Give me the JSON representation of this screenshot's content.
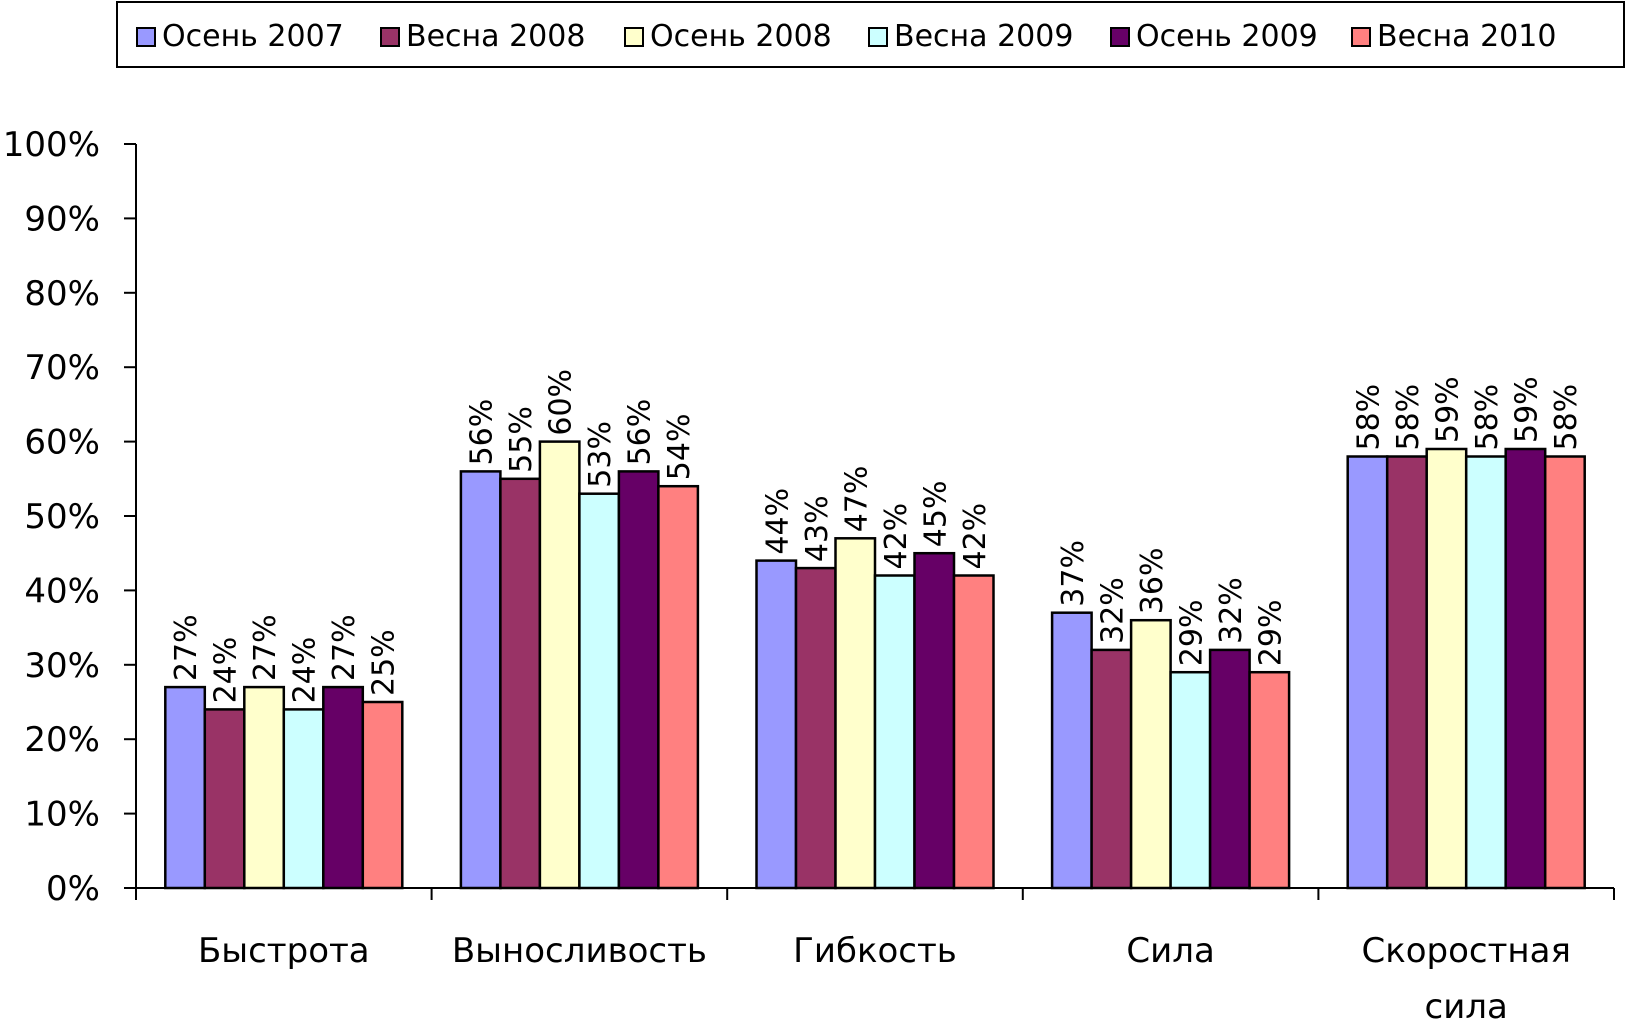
{
  "chart_data": {
    "type": "bar",
    "title": "",
    "xlabel": "",
    "ylabel": "",
    "ylim": [
      0,
      100
    ],
    "yticks": [
      "0%",
      "10%",
      "20%",
      "30%",
      "40%",
      "50%",
      "60%",
      "70%",
      "80%",
      "90%",
      "100%"
    ],
    "grid": false,
    "legend_position": "top",
    "categories": [
      [
        "Быстрота"
      ],
      [
        "Выносливость"
      ],
      [
        "Гибкость"
      ],
      [
        "Сила"
      ],
      [
        "Скоростная",
        "сила"
      ]
    ],
    "series": [
      {
        "name": "Осень 2007",
        "color": "#9999FF",
        "values": [
          27,
          56,
          44,
          37,
          58
        ],
        "labels": [
          "27%",
          "56%",
          "44%",
          "37%",
          "58%"
        ]
      },
      {
        "name": "Весна 2008",
        "color": "#993366",
        "values": [
          24,
          55,
          43,
          32,
          58
        ],
        "labels": [
          "24%",
          "55%",
          "43%",
          "32%",
          "58%"
        ]
      },
      {
        "name": "Осень 2008",
        "color": "#FFFFCC",
        "values": [
          27,
          60,
          47,
          36,
          59
        ],
        "labels": [
          "27%",
          "60%",
          "47%",
          "36%",
          "59%"
        ]
      },
      {
        "name": "Весна 2009",
        "color": "#CCFFFF",
        "values": [
          24,
          53,
          42,
          29,
          58
        ],
        "labels": [
          "24%",
          "53%",
          "42%",
          "29%",
          "58%"
        ]
      },
      {
        "name": "Осень 2009",
        "color": "#660066",
        "values": [
          27,
          56,
          45,
          32,
          59
        ],
        "labels": [
          "27%",
          "56%",
          "45%",
          "32%",
          "59%"
        ]
      },
      {
        "name": "Весна 2010",
        "color": "#FF8080",
        "values": [
          25,
          54,
          42,
          29,
          58
        ],
        "labels": [
          "25%",
          "54%",
          "42%",
          "29%",
          "58%"
        ]
      }
    ]
  }
}
